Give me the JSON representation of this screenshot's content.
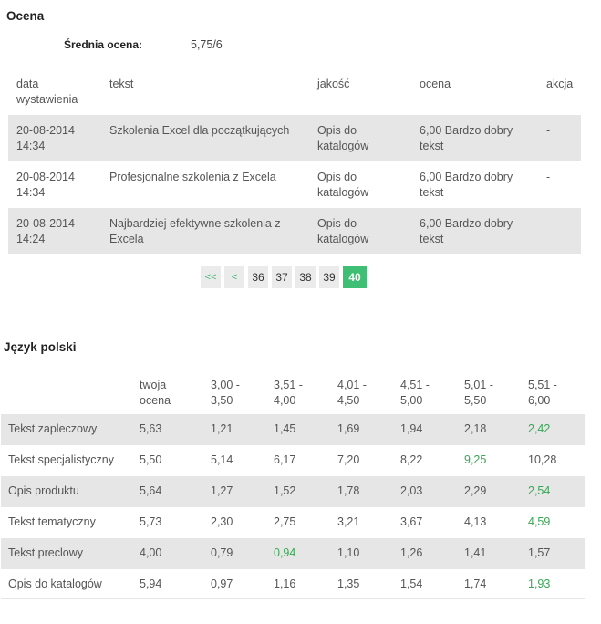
{
  "ocena": {
    "title": "Ocena",
    "average_label": "Średnia ocena:",
    "average_value": "5,75/6",
    "headers": {
      "date": "data\nwystawienia",
      "text": "tekst",
      "quality": "jakość",
      "rating": "ocena",
      "action": "akcja"
    },
    "rows": [
      {
        "date": "20-08-2014\n14:34",
        "text": "Szkolenia Excel dla początkujących",
        "quality": "Opis do\nkatalogów",
        "rating": "6,00 Bardzo dobry\ntekst",
        "action": "-"
      },
      {
        "date": "20-08-2014\n14:34",
        "text": "Profesjonalne szkolenia z Excela",
        "quality": "Opis do\nkatalogów",
        "rating": "6,00 Bardzo dobry\ntekst",
        "action": "-"
      },
      {
        "date": "20-08-2014\n14:24",
        "text": "Najbardziej efektywne szkolenia z\nExcela",
        "quality": "Opis do\nkatalogów",
        "rating": "6,00 Bardzo dobry\ntekst",
        "action": "-"
      }
    ]
  },
  "pagination": {
    "first": "<<",
    "prev": "<",
    "pages": [
      "36",
      "37",
      "38",
      "39",
      "40"
    ],
    "active": "40"
  },
  "language": {
    "title": "Język polski",
    "headers": [
      "",
      "twoja\nocena",
      "3,00 -\n3,50",
      "3,51 -\n4,00",
      "4,01 -\n4,50",
      "4,51 -\n5,00",
      "5,01 -\n5,50",
      "5,51 -\n6,00"
    ],
    "rows": [
      {
        "name": "Tekst zapleczowy",
        "score": "5,63",
        "v": [
          "1,21",
          "1,45",
          "1,69",
          "1,94",
          "2,18",
          "2,42"
        ],
        "hl": 5
      },
      {
        "name": "Tekst specjalistyczny",
        "score": "5,50",
        "v": [
          "5,14",
          "6,17",
          "7,20",
          "8,22",
          "9,25",
          "10,28"
        ],
        "hl": 4
      },
      {
        "name": "Opis produktu",
        "score": "5,64",
        "v": [
          "1,27",
          "1,52",
          "1,78",
          "2,03",
          "2,29",
          "2,54"
        ],
        "hl": 5
      },
      {
        "name": "Tekst tematyczny",
        "score": "5,73",
        "v": [
          "2,30",
          "2,75",
          "3,21",
          "3,67",
          "4,13",
          "4,59"
        ],
        "hl": 5
      },
      {
        "name": "Tekst preclowy",
        "score": "4,00",
        "v": [
          "0,79",
          "0,94",
          "1,10",
          "1,26",
          "1,41",
          "1,57"
        ],
        "hl": 1
      },
      {
        "name": "Opis do katalogów",
        "score": "5,94",
        "v": [
          "0,97",
          "1,16",
          "1,35",
          "1,54",
          "1,74",
          "1,93"
        ],
        "hl": 5
      }
    ],
    "highlight_color": "#3aa655"
  },
  "colors": {
    "active_page": "#3fbf73",
    "row_alt": "#e6e6e6"
  }
}
